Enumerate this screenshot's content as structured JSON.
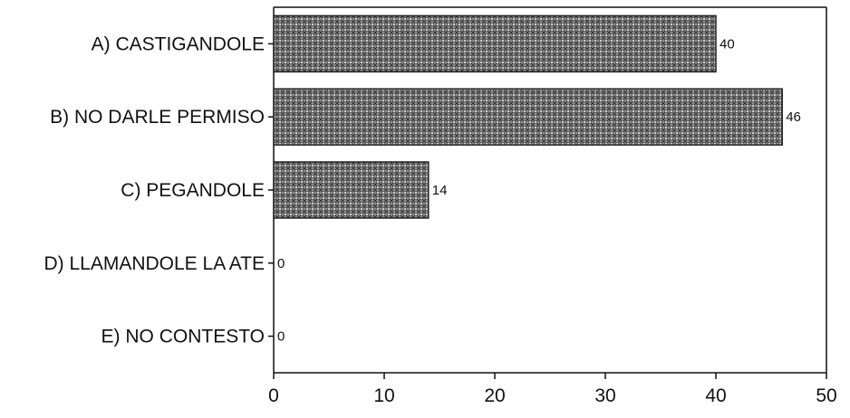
{
  "chart_data": {
    "type": "bar",
    "orientation": "horizontal",
    "categories": [
      "A) CASTIGANDOLE",
      "B) NO DARLE PERMISO",
      "C) PEGANDOLE",
      "D) LLAMANDOLE LA ATE",
      "E) NO CONTESTO"
    ],
    "values": [
      40,
      46,
      14,
      0,
      0
    ],
    "data_labels": [
      "40",
      "46",
      "14",
      "0",
      "0"
    ],
    "xlim": [
      0,
      50
    ],
    "x_ticks": [
      0,
      10,
      20,
      30,
      40,
      50
    ],
    "x_tick_labels": [
      "0",
      "10",
      "20",
      "30",
      "40",
      "50"
    ],
    "title": "",
    "xlabel": "",
    "ylabel": "",
    "grid": false,
    "legend": "none",
    "bar_fill": "crosshatch-gray"
  }
}
